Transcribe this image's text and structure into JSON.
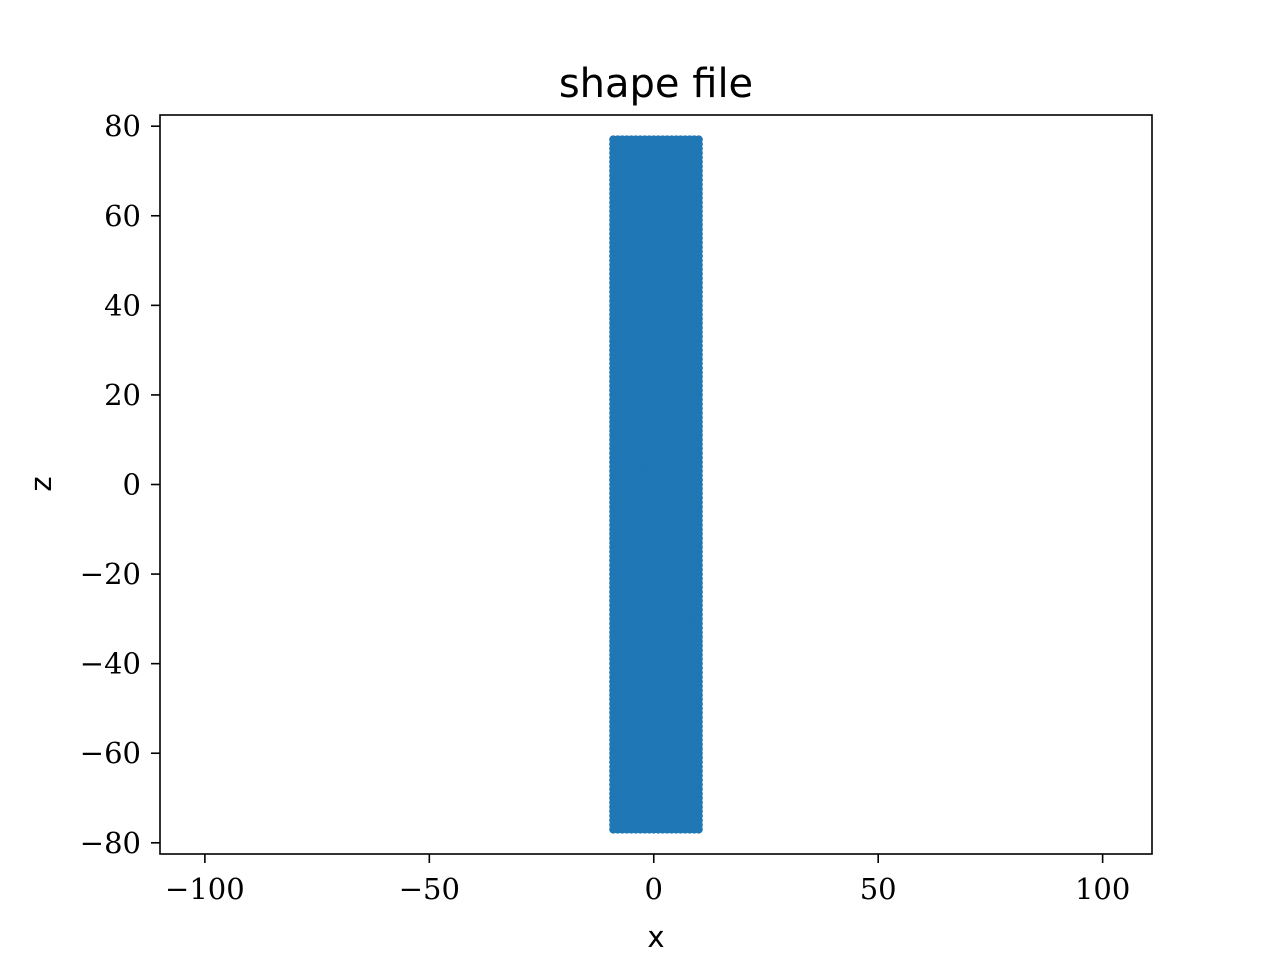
{
  "chart_data": {
    "type": "scatter",
    "title": "shape file",
    "xlabel": "x",
    "ylabel": "z",
    "xlim": [
      -110,
      111
    ],
    "ylim": [
      -82.5,
      82.5
    ],
    "xticks": [
      -100,
      -50,
      0,
      50,
      100
    ],
    "xtick_labels": [
      "−100",
      "−50",
      "0",
      "50",
      "100"
    ],
    "yticks": [
      -80,
      -60,
      -40,
      -20,
      0,
      20,
      40,
      60,
      80
    ],
    "ytick_labels": [
      "−80",
      "−60",
      "−40",
      "−20",
      "0",
      "20",
      "40",
      "60",
      "80"
    ],
    "grid": false,
    "series": [
      {
        "marker_color": "#1f77b4",
        "x_range": [
          -9,
          10
        ],
        "z_range": [
          -77,
          77
        ],
        "x_step": 1,
        "z_step": 1
      }
    ]
  }
}
